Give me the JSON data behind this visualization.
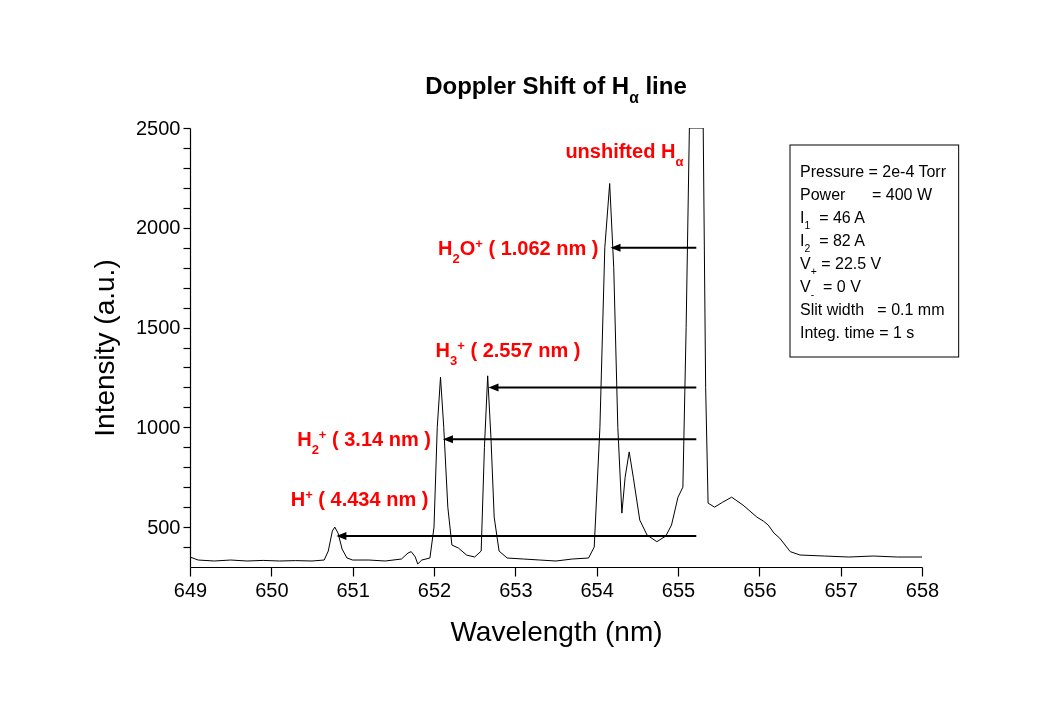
{
  "chart_data": {
    "type": "line",
    "title": "Doppler Shift of H$_{α}$ line",
    "xlabel": "Wavelength (nm)",
    "ylabel": "Intensity (a.u.)",
    "x": [
      649.0,
      649.1,
      649.3,
      649.5,
      649.7,
      649.9,
      650.1,
      650.3,
      650.5,
      650.65,
      650.7,
      650.75,
      650.78,
      650.82,
      650.87,
      650.93,
      651.0,
      651.2,
      651.4,
      651.6,
      651.68,
      651.72,
      651.77,
      651.8,
      651.85,
      651.95,
      652.0,
      652.04,
      652.08,
      652.12,
      652.17,
      652.22,
      652.3,
      652.4,
      652.5,
      652.58,
      652.62,
      652.66,
      652.7,
      652.74,
      652.8,
      652.9,
      653.1,
      653.3,
      653.5,
      653.7,
      653.9,
      653.97,
      654.04,
      654.1,
      654.16,
      654.21,
      654.26,
      654.31,
      654.35,
      654.4,
      654.45,
      654.53,
      654.62,
      654.74,
      654.85,
      654.92,
      655.0,
      655.06,
      655.1,
      655.14,
      655.31,
      655.34,
      655.37,
      655.45,
      655.55,
      655.66,
      655.8,
      655.97,
      656.05,
      656.11,
      656.18,
      656.25,
      656.38,
      656.5,
      656.8,
      657.1,
      657.4,
      657.7,
      658.0
    ],
    "values": [
      350,
      335,
      330,
      335,
      330,
      333,
      330,
      332,
      330,
      335,
      380,
      480,
      500,
      470,
      390,
      345,
      335,
      335,
      330,
      340,
      370,
      377,
      350,
      315,
      335,
      345,
      500,
      1000,
      1251,
      1000,
      600,
      410,
      395,
      360,
      350,
      380,
      900,
      1258,
      950,
      550,
      380,
      345,
      340,
      335,
      330,
      340,
      345,
      400,
      1000,
      1900,
      2222,
      1800,
      1000,
      570,
      750,
      877,
      750,
      535,
      460,
      427,
      455,
      510,
      650,
      700,
      1500,
      2500,
      2500,
      1200,
      620,
      600,
      625,
      650,
      610,
      550,
      530,
      510,
      470,
      445,
      377,
      360,
      355,
      350,
      355,
      350,
      350
    ],
    "color": "#000000",
    "xlim": [
      649,
      658
    ],
    "xticks": [
      649,
      650,
      651,
      652,
      653,
      654,
      655,
      656,
      657,
      658
    ],
    "ylim": [
      300,
      2500
    ],
    "yticks": [
      {
        "value": 400,
        "label": null
      },
      500,
      {
        "value": 600,
        "label": null
      },
      {
        "value": 700,
        "label": null
      },
      {
        "value": 800,
        "label": null
      },
      {
        "value": 900,
        "label": null
      },
      1000,
      {
        "value": 1100,
        "label": null
      },
      {
        "value": 1200,
        "label": null
      },
      {
        "value": 1300,
        "label": null
      },
      {
        "value": 1400,
        "label": null
      },
      1500,
      {
        "value": 1600,
        "label": null
      },
      {
        "value": 1700,
        "label": null
      },
      {
        "value": 1800,
        "label": null
      },
      {
        "value": 1900,
        "label": null
      },
      2000,
      {
        "value": 2100,
        "label": null
      },
      {
        "value": 2200,
        "label": null
      },
      {
        "value": 2300,
        "label": null
      },
      {
        "value": 2400,
        "label": null
      },
      2500
    ],
    "annotations": [
      {
        "text": "H$^{+}$ ( 4.434 nm )",
        "x": 650.8,
        "y": 455
      },
      {
        "text": "H$_{2}$$^{+}$ ( 3.14 nm )",
        "x": 652.11,
        "y": 940
      },
      {
        "text": "H$_{3}$$^{+}$ ( 2.557 nm )",
        "x": 652.67,
        "y": 1200
      },
      {
        "text": "H$_{2}$O$^{+}$ ( 1.062 nm )",
        "x": 654.17,
        "y": 1900
      },
      "unshifted H$_{α}$",
      "Pressure = 2e-4 Torr",
      "Power      = 400 W",
      "I$_{1}$  = 46 A",
      "I$_{2}$  = 82 A",
      "V$_{+}$ = 22.5 V",
      "V$_{-}$  = 0 V",
      "Slit width   = 0.1 mm",
      "Integ. time = 1 s"
    ]
  }
}
